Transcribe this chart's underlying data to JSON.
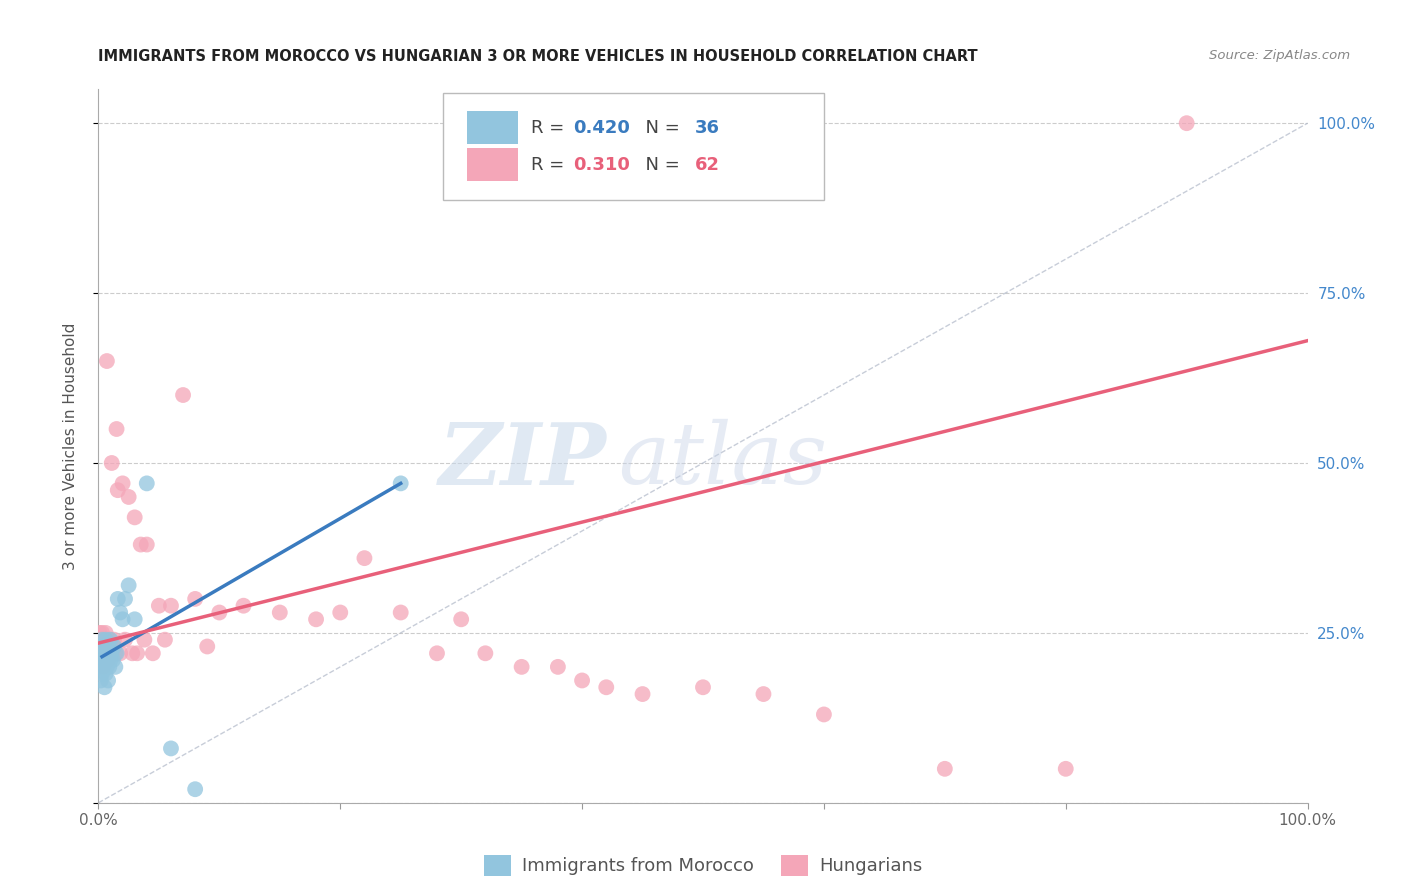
{
  "title": "IMMIGRANTS FROM MOROCCO VS HUNGARIAN 3 OR MORE VEHICLES IN HOUSEHOLD CORRELATION CHART",
  "source": "Source: ZipAtlas.com",
  "ylabel": "3 or more Vehicles in Household",
  "ytick_positions": [
    0.0,
    0.25,
    0.5,
    0.75,
    1.0
  ],
  "xlim": [
    0.0,
    1.0
  ],
  "ylim": [
    0.0,
    1.05
  ],
  "morocco_R": 0.42,
  "morocco_N": 36,
  "hungarian_R": 0.31,
  "hungarian_N": 62,
  "morocco_color": "#92c5de",
  "hungarian_color": "#f4a6b8",
  "morocco_line_color": "#3a7bbf",
  "hungarian_line_color": "#e8607a",
  "diagonal_color": "#b0b8c8",
  "background_color": "#ffffff",
  "watermark_zip": "ZIP",
  "watermark_atlas": "atlas",
  "morocco_scatter_x": [
    0.001,
    0.002,
    0.002,
    0.003,
    0.003,
    0.003,
    0.004,
    0.004,
    0.005,
    0.005,
    0.006,
    0.006,
    0.006,
    0.007,
    0.007,
    0.008,
    0.008,
    0.009,
    0.009,
    0.01,
    0.01,
    0.011,
    0.012,
    0.013,
    0.014,
    0.015,
    0.016,
    0.018,
    0.02,
    0.022,
    0.025,
    0.03,
    0.04,
    0.06,
    0.08,
    0.25
  ],
  "morocco_scatter_y": [
    0.22,
    0.2,
    0.18,
    0.24,
    0.21,
    0.19,
    0.23,
    0.2,
    0.22,
    0.17,
    0.24,
    0.21,
    0.19,
    0.22,
    0.2,
    0.23,
    0.18,
    0.22,
    0.2,
    0.24,
    0.21,
    0.22,
    0.21,
    0.23,
    0.2,
    0.22,
    0.3,
    0.28,
    0.27,
    0.3,
    0.32,
    0.27,
    0.47,
    0.08,
    0.02,
    0.47
  ],
  "hungarian_scatter_x": [
    0.001,
    0.002,
    0.002,
    0.003,
    0.003,
    0.004,
    0.004,
    0.005,
    0.005,
    0.006,
    0.006,
    0.007,
    0.007,
    0.008,
    0.008,
    0.009,
    0.01,
    0.01,
    0.011,
    0.012,
    0.013,
    0.014,
    0.015,
    0.016,
    0.018,
    0.02,
    0.022,
    0.025,
    0.028,
    0.03,
    0.032,
    0.035,
    0.038,
    0.04,
    0.045,
    0.05,
    0.055,
    0.06,
    0.07,
    0.08,
    0.09,
    0.1,
    0.12,
    0.15,
    0.18,
    0.2,
    0.22,
    0.25,
    0.28,
    0.3,
    0.32,
    0.35,
    0.38,
    0.4,
    0.42,
    0.45,
    0.5,
    0.55,
    0.6,
    0.7,
    0.8,
    0.9
  ],
  "hungarian_scatter_y": [
    0.25,
    0.23,
    0.21,
    0.25,
    0.22,
    0.23,
    0.2,
    0.24,
    0.22,
    0.25,
    0.22,
    0.65,
    0.24,
    0.23,
    0.21,
    0.24,
    0.23,
    0.22,
    0.5,
    0.23,
    0.24,
    0.22,
    0.55,
    0.46,
    0.22,
    0.47,
    0.24,
    0.45,
    0.22,
    0.42,
    0.22,
    0.38,
    0.24,
    0.38,
    0.22,
    0.29,
    0.24,
    0.29,
    0.6,
    0.3,
    0.23,
    0.28,
    0.29,
    0.28,
    0.27,
    0.28,
    0.36,
    0.28,
    0.22,
    0.27,
    0.22,
    0.2,
    0.2,
    0.18,
    0.17,
    0.16,
    0.17,
    0.16,
    0.13,
    0.05,
    0.05,
    1.0
  ],
  "morocco_line_x": [
    0.003,
    0.25
  ],
  "morocco_line_y": [
    0.215,
    0.47
  ],
  "hungarian_line_x": [
    0.0,
    1.0
  ],
  "hungarian_line_y": [
    0.235,
    0.68
  ]
}
